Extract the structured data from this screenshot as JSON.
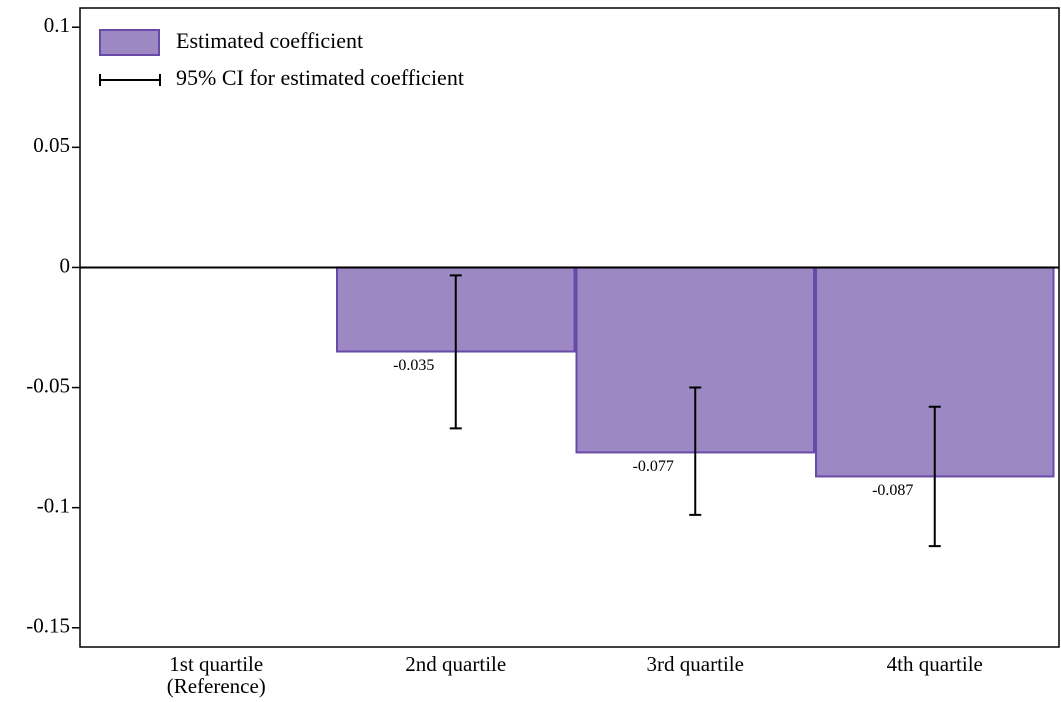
{
  "chart_data": {
    "type": "bar",
    "categories": [
      "1st quartile\n(Reference)",
      "2nd quartile",
      "3rd quartile",
      "4th quartile"
    ],
    "series": [
      {
        "name": "Estimated coefficient",
        "color": "#9c89c4",
        "edge_color": "#6a4aa8",
        "values": [
          null,
          -0.035,
          -0.077,
          -0.087
        ]
      }
    ],
    "error_bars": {
      "name": "95% CI for estimated coefficient",
      "color": "#000000",
      "lower": [
        null,
        -0.067,
        -0.103,
        -0.116
      ],
      "upper": [
        null,
        -0.0033,
        -0.05,
        -0.058
      ]
    },
    "ylim": [
      -0.158,
      0.108
    ],
    "yticks": [
      0.1,
      0.05,
      0,
      -0.05,
      -0.1,
      -0.15
    ],
    "grid": false,
    "legend": "upper left"
  }
}
